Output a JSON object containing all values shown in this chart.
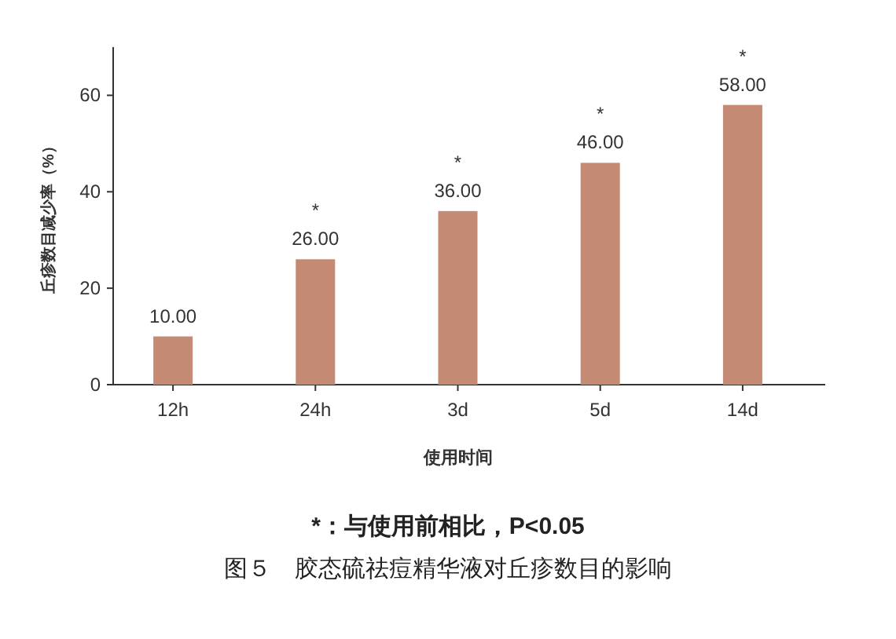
{
  "chart_data": {
    "type": "bar",
    "title": "图５　胶态硫祛痘精华液对丘疹数目的影响",
    "xlabel": "使用时间",
    "ylabel": "丘疹数目减少率（%）",
    "categories": [
      "12h",
      "24h",
      "3d",
      "5d",
      "14d"
    ],
    "values": [
      10.0,
      26.0,
      36.0,
      46.0,
      58.0
    ],
    "value_labels": [
      "10.00",
      "26.00",
      "36.00",
      "46.00",
      "58.00"
    ],
    "color": "#c48a74",
    "ylim": [
      0,
      70
    ],
    "yticks": [
      0,
      20,
      40,
      60
    ],
    "grid": false,
    "annotations": [
      {
        "text": "*",
        "x": "24h",
        "y": 26
      },
      {
        "text": "*",
        "x": "3d",
        "y": 36
      },
      {
        "text": "*",
        "x": "5d",
        "y": 46
      },
      {
        "text": "*",
        "x": "14d",
        "y": 58
      },
      "*：与使用前相比，P<0.05"
    ]
  }
}
